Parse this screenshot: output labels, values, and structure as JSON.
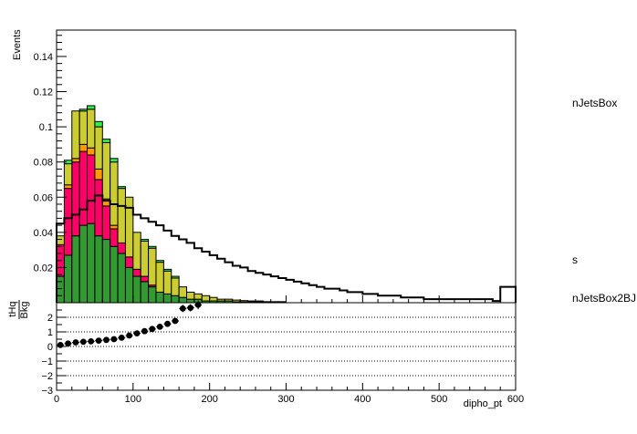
{
  "chart_data": [
    {
      "type": "area",
      "stacked_histogram": true,
      "ylabel": "Events",
      "xlim": [
        0,
        600
      ],
      "ylim": [
        0,
        0.155
      ],
      "bin_width": 10,
      "y_ticks": [
        "0.02",
        "0.04",
        "0.06",
        "0.08",
        "0.1",
        "0.12",
        "0.14"
      ],
      "y_tick_values": [
        0.02,
        0.04,
        0.06,
        0.08,
        0.1,
        0.12,
        0.14
      ],
      "legend_labels": [
        "nJetsBox",
        "s",
        "nJetsBox2BJ"
      ],
      "series": [
        {
          "color": "#339933",
          "values": [
            0.015,
            0.027,
            0.038,
            0.044,
            0.045,
            0.038,
            0.036,
            0.032,
            0.028,
            0.02,
            0.015,
            0.012,
            0.009,
            0.006,
            0.005,
            0.004,
            0.003,
            0.002,
            0.002,
            0.001,
            0.001,
            0.001,
            0.001,
            0.0005,
            0.0005,
            0.0005,
            0.0005,
            0.0003,
            0.0003,
            0.0003
          ]
        },
        {
          "color": "#ff0066",
          "values": [
            0.018,
            0.038,
            0.042,
            0.042,
            0.039,
            0.032,
            0.019,
            0.01,
            0.006,
            0.006,
            0.004,
            0.003,
            0.001,
            0.0,
            0.0,
            0.0,
            0.0,
            0.0,
            0.0,
            0.0,
            0.0,
            0.0,
            0.0,
            0.0,
            0.0,
            0.0,
            0.0,
            0.0,
            0.0,
            0.0
          ]
        },
        {
          "color": "#ff9900",
          "values": [
            0.0,
            0.002,
            0.002,
            0.004,
            0.004,
            0.006,
            0.004,
            0.002,
            0.0,
            0.0,
            0.0,
            0.0,
            0.0,
            0.0,
            0.0,
            0.0,
            0.0,
            0.0,
            0.0,
            0.0,
            0.0,
            0.0,
            0.0,
            0.0,
            0.0,
            0.0,
            0.0,
            0.0,
            0.0,
            0.0
          ]
        },
        {
          "color": "#cccc33",
          "values": [
            0.005,
            0.012,
            0.027,
            0.019,
            0.022,
            0.024,
            0.032,
            0.036,
            0.031,
            0.034,
            0.021,
            0.02,
            0.021,
            0.017,
            0.013,
            0.01,
            0.006,
            0.004,
            0.003,
            0.003,
            0.002,
            0.001,
            0.001,
            0.001,
            0.0007,
            0.0005,
            0.0005,
            0.0003,
            0.0003,
            0.0003
          ]
        },
        {
          "color": "#33ee44",
          "values": [
            0.0,
            0.002,
            0.0,
            0.001,
            0.002,
            0.003,
            0.002,
            0.002,
            0.001,
            0.0,
            0.0,
            0.001,
            0.001,
            0.001,
            0.001,
            0.001,
            0.0,
            0.0,
            0.0,
            0.0,
            0.0,
            0.0,
            0.0,
            0.0,
            0.0,
            0.0,
            0.0,
            0.0,
            0.0,
            0.0
          ]
        }
      ],
      "outline": {
        "color": "#000000",
        "values": [
          0.045,
          0.048,
          0.05,
          0.053,
          0.058,
          0.061,
          0.058,
          0.056,
          0.055,
          0.054,
          0.05,
          0.048,
          0.046,
          0.044,
          0.041,
          0.038,
          0.036,
          0.034,
          0.031,
          0.029,
          0.027,
          0.025,
          0.023,
          0.021,
          0.02,
          0.018,
          0.017,
          0.016,
          0.015,
          0.014,
          0.013,
          0.012,
          0.011,
          0.01,
          0.009,
          0.008,
          0.008,
          0.007,
          0.006,
          0.006,
          0.005,
          0.005,
          0.004,
          0.004,
          0.004,
          0.003,
          0.003,
          0.003,
          0.002,
          0.002,
          0.002,
          0.002,
          0.002,
          0.002,
          0.002,
          0.002,
          0.002,
          0.001,
          0.009,
          0.009
        ]
      }
    },
    {
      "type": "scatter",
      "ylabel_numerator": "tHq",
      "ylabel_denominator": "Bkg",
      "xlabel": "dipho_pt",
      "xlim": [
        0,
        600
      ],
      "ylim": [
        -3,
        3
      ],
      "x_ticks": [
        "0",
        "100",
        "200",
        "300",
        "400",
        "500",
        "600"
      ],
      "x_tick_values": [
        0,
        100,
        200,
        300,
        400,
        500,
        600
      ],
      "y_ticks": [
        "−3",
        "−2",
        "−1",
        "0",
        "1",
        "2"
      ],
      "y_tick_values": [
        -3,
        -2,
        -1,
        0,
        1,
        2
      ],
      "gridlines_y": [
        -3,
        -2,
        -1,
        0,
        1,
        2
      ],
      "points": {
        "x": [
          5,
          15,
          25,
          35,
          45,
          55,
          65,
          75,
          85,
          95,
          105,
          115,
          125,
          135,
          145,
          155,
          165,
          175,
          185
        ],
        "y": [
          0.1,
          0.2,
          0.28,
          0.32,
          0.35,
          0.4,
          0.45,
          0.5,
          0.6,
          0.75,
          0.9,
          1.05,
          1.2,
          1.35,
          1.55,
          1.75,
          2.6,
          2.65,
          2.85
        ],
        "err": [
          0.1,
          0.1,
          0.1,
          0.1,
          0.1,
          0.1,
          0.1,
          0.1,
          0.1,
          0.12,
          0.12,
          0.12,
          0.12,
          0.15,
          0.15,
          0.2,
          0.25,
          0.25,
          0.3
        ]
      }
    }
  ]
}
